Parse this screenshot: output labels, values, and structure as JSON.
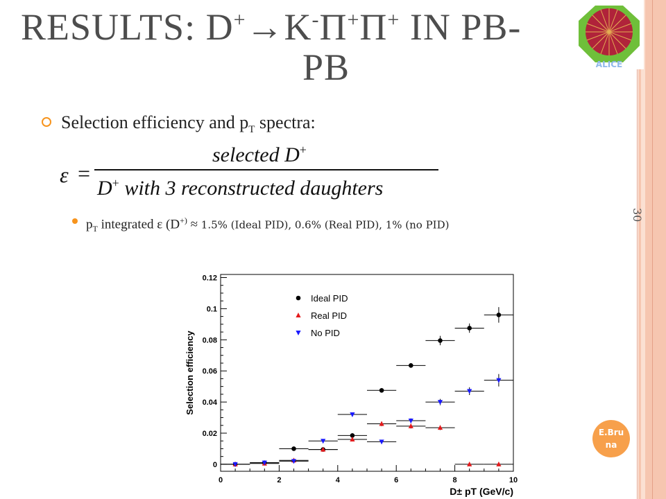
{
  "slide": {
    "title_line_1": "RESULTS: D",
    "title_line_1_sup": "+",
    "title_arrow": "→",
    "title_K": "K",
    "title_K_sup": "-",
    "title_pi1": "Π",
    "title_pi1_sup": "+",
    "title_pi2": "Π",
    "title_pi2_sup": "+",
    "title_tail": " IN PB-",
    "title_line_2": "PB",
    "slide_number": "30",
    "author": "E.Bruna",
    "logo_text": "ALICE"
  },
  "bullets": {
    "b1_text": "Selection efficiency and p",
    "b1_sub": "T",
    "b1_tail": " spectra:",
    "formula_lhs": "ε",
    "formula_eq": "=",
    "formula_numerator": "selected D",
    "formula_numerator_sup": "+",
    "formula_denominator_D": "D",
    "formula_denominator_sup": "+",
    "formula_denominator_tail": " with 3 reconstructed daughters",
    "b2_p": "p",
    "b2_sub": "T",
    "b2_mid": " integrated ε (D",
    "b2_sup": "+)",
    "b2_approx": " ≈ ",
    "b2_values": "1.5% (Ideal PID), 0.6% (Real PID), 1% (no PID)"
  },
  "chart_data": {
    "type": "scatter",
    "xlabel": "D± pT (GeV/c)",
    "ylabel": "Selection efficiency",
    "xlim": [
      0,
      10
    ],
    "ylim": [
      -0.0045,
      0.122
    ],
    "xticks": [
      "0",
      "2",
      "4",
      "6",
      "8",
      "10"
    ],
    "yticks": [
      "0",
      "0.02",
      "0.04",
      "0.06",
      "0.08",
      "0.1",
      "0.12"
    ],
    "legend_position": "top-left",
    "series": [
      {
        "name": "Ideal PID",
        "marker": "circle",
        "color": "#000000",
        "x": [
          0.5,
          1.5,
          2.5,
          3.5,
          4.5,
          5.5,
          6.5,
          7.5,
          8.5,
          9.5
        ],
        "y": [
          0.0,
          0.001,
          0.01,
          0.0095,
          0.0185,
          0.0475,
          0.0635,
          0.0795,
          0.0875,
          0.096
        ],
        "yerr": [
          0.0005,
          0.0005,
          0.0008,
          0.0008,
          0.0015,
          0.0015,
          0.0015,
          0.003,
          0.003,
          0.005
        ]
      },
      {
        "name": "Real PID",
        "marker": "triangle-up",
        "color": "#e41a1c",
        "x": [
          0.5,
          1.5,
          2.5,
          3.5,
          4.5,
          5.5,
          6.5,
          7.5,
          8.5,
          9.5
        ],
        "y": [
          0.0,
          0.0005,
          0.0025,
          0.0095,
          0.016,
          0.026,
          0.0245,
          0.0235,
          0.0,
          0.0
        ],
        "yerr": [
          0.0003,
          0.0003,
          0.0005,
          0.0008,
          0.001,
          0.0015,
          0.0015,
          0.0015,
          0.0003,
          0.0003
        ]
      },
      {
        "name": "No PID",
        "marker": "triangle-down",
        "color": "#1a1aff",
        "x": [
          0.5,
          1.5,
          2.5,
          3.5,
          4.5,
          5.5,
          6.5,
          7.5,
          8.5,
          9.5
        ],
        "y": [
          0.0,
          0.001,
          0.002,
          0.015,
          0.032,
          0.0145,
          0.028,
          0.04,
          0.047,
          0.054
        ],
        "yerr": [
          0.0003,
          0.0003,
          0.0005,
          0.0008,
          0.001,
          0.001,
          0.0015,
          0.002,
          0.0025,
          0.004
        ]
      }
    ]
  },
  "colors": {
    "accent": "#f7941d",
    "border": "#f6c6b0",
    "title": "#4d4d4d"
  }
}
